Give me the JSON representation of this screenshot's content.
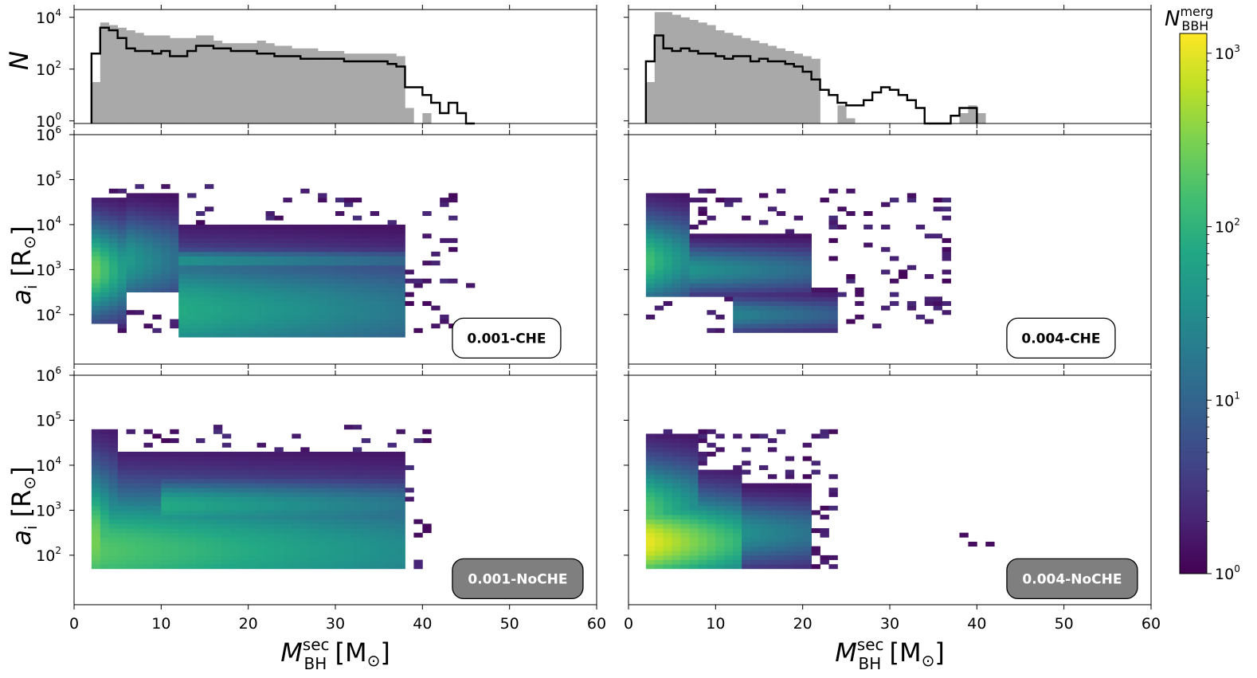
{
  "chart_data": {
    "type": "heatmap",
    "title": "",
    "xlabel": "M_BH^sec [M_⊙]",
    "xlabel_parts": {
      "main": "M",
      "sub": "BH",
      "sup": "sec",
      "unit": "[M",
      "unit_sub": "⊙",
      "unit_close": "]"
    },
    "ylabel_hist": "N",
    "ylabel_heat": "a_i [R_⊙]",
    "ylabel_parts": {
      "main": "a",
      "sub": "i",
      "unit": "[R",
      "unit_sub": "⊙",
      "unit_close": "]"
    },
    "xlim": [
      0,
      60
    ],
    "x_ticks": [
      0,
      10,
      20,
      30,
      40,
      50,
      60
    ],
    "x_tick_labels": [
      "0",
      "10",
      "20",
      "30",
      "40",
      "50",
      "60"
    ],
    "hist_ylim_log10": [
      -0.1,
      4.3
    ],
    "hist_y_ticks": [
      {
        "base": "10",
        "exp": "0"
      },
      {
        "base": "10",
        "exp": "2"
      },
      {
        "base": "10",
        "exp": "4"
      }
    ],
    "heat_ylim_log10": [
      0.9,
      6.0
    ],
    "heat_y_ticks": [
      {
        "base": "10",
        "exp": "2"
      },
      {
        "base": "10",
        "exp": "3"
      },
      {
        "base": "10",
        "exp": "4"
      },
      {
        "base": "10",
        "exp": "5"
      },
      {
        "base": "10",
        "exp": "6"
      }
    ],
    "colorbar": {
      "title_main": "N",
      "title_sub": "BBH",
      "title_sup": "merg",
      "scale": "log",
      "range": [
        1,
        1300
      ],
      "colormap": "viridis",
      "ticks": [
        {
          "base": "10",
          "exp": "0"
        },
        {
          "base": "10",
          "exp": "1"
        },
        {
          "base": "10",
          "exp": "2"
        },
        {
          "base": "10",
          "exp": "3"
        }
      ]
    },
    "histograms": [
      {
        "name": "Z=0.001",
        "bin_width": 1,
        "x_start": 2,
        "gray_fill_NoCHE_log10": [
          1.5,
          3.8,
          3.7,
          3.6,
          3.5,
          3.4,
          3.3,
          3.3,
          3.3,
          3.2,
          3.2,
          3.2,
          3.3,
          3.3,
          3.1,
          3.0,
          3.0,
          3.0,
          3.0,
          3.1,
          3.0,
          2.9,
          2.9,
          2.8,
          2.8,
          2.8,
          2.7,
          2.7,
          2.7,
          2.6,
          2.6,
          2.6,
          2.6,
          2.6,
          2.6,
          2.5,
          0.5,
          0,
          0.3,
          0,
          0,
          0,
          0,
          0
        ],
        "black_step_CHE_log10": [
          2.6,
          3.6,
          3.5,
          3.2,
          2.8,
          2.7,
          2.7,
          2.6,
          2.7,
          2.5,
          2.5,
          2.7,
          2.9,
          2.9,
          2.8,
          2.8,
          2.7,
          2.7,
          2.7,
          2.6,
          2.6,
          2.5,
          2.5,
          2.5,
          2.4,
          2.4,
          2.4,
          2.4,
          2.4,
          2.3,
          2.3,
          2.3,
          2.3,
          2.3,
          2.2,
          2.1,
          1.3,
          1.3,
          1.0,
          0.7,
          0.3,
          0.7,
          0.3,
          -0.1
        ]
      },
      {
        "name": "Z=0.004",
        "bin_width": 1,
        "x_start": 2,
        "gray_fill_NoCHE_log10": [
          1.5,
          4.2,
          4.2,
          4.1,
          4.0,
          3.9,
          3.8,
          3.7,
          3.5,
          3.4,
          3.3,
          3.2,
          3.1,
          3.0,
          2.9,
          2.8,
          2.7,
          2.6,
          2.5,
          2.4,
          0,
          0,
          0.6,
          0.1,
          0,
          0,
          0,
          0,
          0,
          0,
          0,
          0,
          0,
          0,
          0,
          0,
          0.3,
          0.6,
          0.3
        ],
        "black_step_CHE_log10": [
          2.3,
          3.3,
          2.8,
          2.7,
          2.8,
          2.7,
          2.6,
          2.6,
          2.5,
          2.4,
          2.5,
          2.5,
          2.3,
          2.4,
          2.3,
          2.3,
          2.2,
          2.1,
          1.9,
          1.6,
          1.2,
          1.0,
          0.7,
          0.6,
          0.6,
          0.8,
          1.1,
          1.3,
          1.2,
          1.0,
          0.8,
          0.5,
          -0.1,
          -0.1,
          -0.1,
          0.2,
          0.5,
          0.5
        ]
      }
    ],
    "panels": [
      {
        "name": "0.001-CHE",
        "label": "0.001-CHE",
        "badge_style": "white",
        "blobs": [
          {
            "x": [
              2,
              6
            ],
            "log_a": [
              1.8,
              4.6
            ],
            "peak_log10N": 2.5,
            "core_log_a": 3.0
          },
          {
            "x": [
              6,
              12
            ],
            "log_a": [
              2.5,
              4.7
            ],
            "peak_log10N": 1.7,
            "core_log_a": 3.2
          },
          {
            "x": [
              12,
              38
            ],
            "log_a": [
              1.5,
              4.0
            ],
            "peak_log10N": 1.9,
            "core_log_a": 2.1
          },
          {
            "x": [
              12,
              38
            ],
            "log_a": [
              2.8,
              3.6
            ],
            "peak_log10N": 1.6,
            "core_log_a": 3.2
          }
        ],
        "scatter_range": {
          "x": [
            3,
            46
          ],
          "log_a": [
            1.6,
            4.9
          ]
        }
      },
      {
        "name": "0.004-CHE",
        "label": "0.004-CHE",
        "badge_style": "white",
        "blobs": [
          {
            "x": [
              2,
              7
            ],
            "log_a": [
              2.4,
              4.7
            ],
            "peak_log10N": 2.2,
            "core_log_a": 3.2
          },
          {
            "x": [
              7,
              21
            ],
            "log_a": [
              2.4,
              3.8
            ],
            "peak_log10N": 1.6,
            "core_log_a": 3.0
          },
          {
            "x": [
              12,
              24
            ],
            "log_a": [
              1.6,
              2.6
            ],
            "peak_log10N": 1.4,
            "core_log_a": 2.0
          }
        ],
        "scatter_range": {
          "x": [
            2,
            38
          ],
          "log_a": [
            1.6,
            4.8
          ]
        }
      },
      {
        "name": "0.001-NoCHE",
        "label": "0.001-NoCHE",
        "badge_style": "gray",
        "blobs": [
          {
            "x": [
              2,
              38
            ],
            "log_a": [
              1.7,
              4.3
            ],
            "peak_log10N": 2.3,
            "core_log_a": 2.1
          },
          {
            "x": [
              2,
              5
            ],
            "log_a": [
              1.7,
              4.8
            ],
            "peak_log10N": 2.6,
            "core_log_a": 2.3
          },
          {
            "x": [
              10,
              38
            ],
            "log_a": [
              2.5,
              4.0
            ],
            "peak_log10N": 1.9,
            "core_log_a": 3.1
          }
        ],
        "scatter_range": {
          "x": [
            3,
            41
          ],
          "log_a": [
            1.7,
            4.9
          ]
        }
      },
      {
        "name": "0.004-NoCHE",
        "label": "0.004-NoCHE",
        "badge_style": "gray",
        "blobs": [
          {
            "x": [
              2,
              13
            ],
            "log_a": [
              1.7,
              3.9
            ],
            "peak_log10N": 3.05,
            "core_log_a": 2.3
          },
          {
            "x": [
              2,
              8
            ],
            "log_a": [
              1.7,
              4.7
            ],
            "peak_log10N": 2.3,
            "core_log_a": 3.0
          },
          {
            "x": [
              8,
              21
            ],
            "log_a": [
              1.7,
              3.6
            ],
            "peak_log10N": 1.8,
            "core_log_a": 2.5
          }
        ],
        "scatter_range": {
          "x": [
            3,
            24
          ],
          "log_a": [
            1.7,
            4.8
          ]
        },
        "outliers": [
          {
            "x": 38,
            "log_a": 2.4
          },
          {
            "x": 39.5,
            "log_a": 2.2
          },
          {
            "x": 41,
            "log_a": 2.2
          }
        ]
      }
    ]
  },
  "colors": {
    "hist_fill": "#a9a9a9",
    "hist_step": "#000000",
    "badge_white_fill": "#ffffff",
    "badge_gray_fill": "#7f7f7f",
    "badge_gray_text": "#ffffff"
  }
}
